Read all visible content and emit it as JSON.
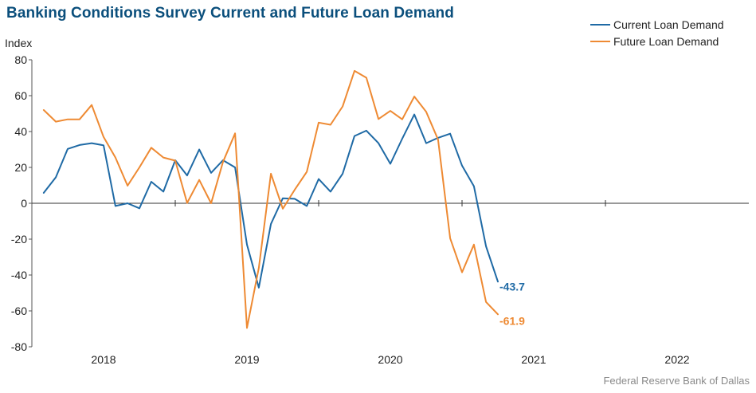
{
  "title": "Banking Conditions Survey Current and Future Loan Demand",
  "source": "Federal Reserve Bank of Dallas",
  "colors": {
    "current": "#1f6aa5",
    "future": "#ee8a33",
    "title": "#0b4f7c"
  },
  "chart_data": {
    "type": "line",
    "title": "Banking Conditions Survey Current and Future Loan Demand",
    "ylabel": "Index",
    "xlabel": "",
    "ylim": [
      -80,
      80
    ],
    "yticks": [
      80,
      60,
      40,
      20,
      0,
      -20,
      -40,
      -60,
      -80
    ],
    "x_ticks": [
      "2018",
      "2019",
      "2020",
      "2021",
      "2022"
    ],
    "x_range": [
      2017.5,
      2022.5
    ],
    "grid": false,
    "legend": "top-right",
    "series": [
      {
        "name": "Current Loan Demand",
        "color": "#1f6aa5",
        "end_label": "-43.7",
        "points": [
          [
            2017.583,
            5.8
          ],
          [
            2017.667,
            14.5
          ],
          [
            2017.75,
            30.3
          ],
          [
            2017.833,
            32.5
          ],
          [
            2017.917,
            33.5
          ],
          [
            2018.0,
            32.3
          ],
          [
            2018.083,
            -1.5
          ],
          [
            2018.167,
            0.0
          ],
          [
            2018.25,
            -2.8
          ],
          [
            2018.333,
            12.0
          ],
          [
            2018.417,
            6.5
          ],
          [
            2018.5,
            24.0
          ],
          [
            2018.583,
            15.5
          ],
          [
            2018.667,
            30.0
          ],
          [
            2018.75,
            17.0
          ],
          [
            2018.833,
            24.0
          ],
          [
            2018.917,
            20.0
          ],
          [
            2019.0,
            -23.0
          ],
          [
            2019.083,
            -47.0
          ],
          [
            2019.167,
            -11.5
          ],
          [
            2019.25,
            2.8
          ],
          [
            2019.333,
            2.5
          ],
          [
            2019.417,
            -1.5
          ],
          [
            2019.5,
            13.5
          ],
          [
            2019.583,
            6.5
          ],
          [
            2019.667,
            16.5
          ],
          [
            2019.75,
            37.5
          ],
          [
            2019.833,
            40.5
          ],
          [
            2019.917,
            33.5
          ],
          [
            2020.0,
            22.0
          ],
          [
            2020.083,
            36.0
          ],
          [
            2020.167,
            49.5
          ],
          [
            2020.25,
            33.5
          ],
          [
            2020.333,
            36.5
          ],
          [
            2020.417,
            38.8
          ],
          [
            2020.5,
            21.0
          ],
          [
            2020.583,
            9.5
          ],
          [
            2020.667,
            -24.0
          ],
          [
            2020.75,
            -43.7
          ]
        ]
      },
      {
        "name": "Future Loan Demand",
        "color": "#ee8a33",
        "end_label": "-61.9",
        "points": [
          [
            2017.583,
            52.0
          ],
          [
            2017.667,
            45.5
          ],
          [
            2017.75,
            46.8
          ],
          [
            2017.833,
            46.8
          ],
          [
            2017.917,
            54.8
          ],
          [
            2018.0,
            37.0
          ],
          [
            2018.083,
            25.5
          ],
          [
            2018.167,
            9.8
          ],
          [
            2018.25,
            20.0
          ],
          [
            2018.333,
            31.0
          ],
          [
            2018.417,
            25.5
          ],
          [
            2018.5,
            23.8
          ],
          [
            2018.583,
            0.2
          ],
          [
            2018.667,
            13.0
          ],
          [
            2018.75,
            0.0
          ],
          [
            2018.833,
            23.0
          ],
          [
            2018.917,
            39.0
          ],
          [
            2019.0,
            -69.5
          ],
          [
            2019.083,
            -36.0
          ],
          [
            2019.167,
            16.5
          ],
          [
            2019.25,
            -3.0
          ],
          [
            2019.333,
            7.5
          ],
          [
            2019.417,
            17.5
          ],
          [
            2019.5,
            45.0
          ],
          [
            2019.583,
            43.8
          ],
          [
            2019.667,
            54.0
          ],
          [
            2019.75,
            73.8
          ],
          [
            2019.833,
            70.0
          ],
          [
            2019.917,
            47.0
          ],
          [
            2020.0,
            51.5
          ],
          [
            2020.083,
            46.8
          ],
          [
            2020.167,
            59.5
          ],
          [
            2020.25,
            51.0
          ],
          [
            2020.333,
            35.5
          ],
          [
            2020.417,
            -19.5
          ],
          [
            2020.5,
            -38.5
          ],
          [
            2020.583,
            -23.0
          ],
          [
            2020.667,
            -55.0
          ],
          [
            2020.75,
            -61.9
          ]
        ]
      }
    ]
  }
}
